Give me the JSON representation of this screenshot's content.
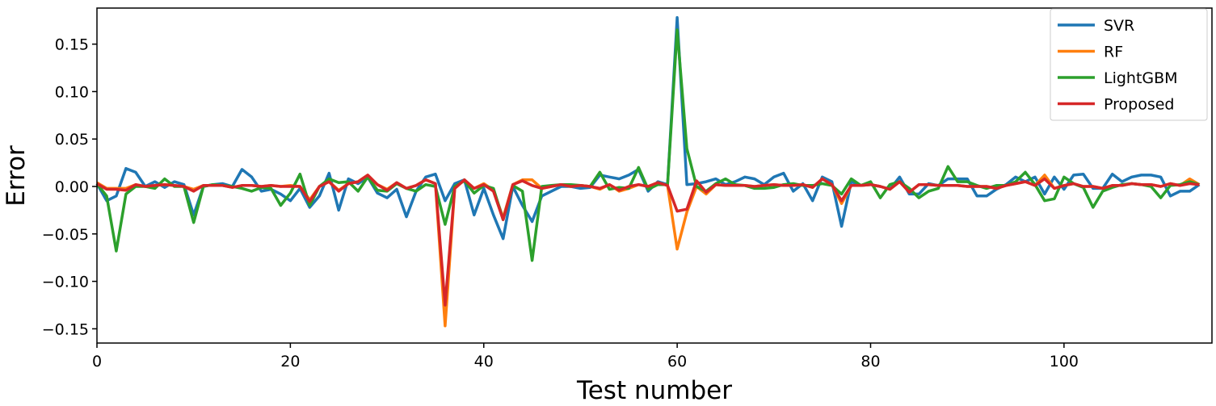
{
  "chart_data": {
    "type": "line",
    "title": "",
    "xlabel": "Test number",
    "ylabel": "Error",
    "xlim": [
      0,
      115.3
    ],
    "ylim": [
      -0.165,
      0.188
    ],
    "xticks": [
      0,
      20,
      40,
      60,
      80,
      100
    ],
    "yticks": [
      -0.15,
      -0.1,
      -0.05,
      0.0,
      0.05,
      0.1,
      0.15
    ],
    "ytick_labels": [
      "−0.15",
      "−0.10",
      "−0.05",
      "0.00",
      "0.05",
      "0.10",
      "0.15"
    ],
    "grid": false,
    "legend_position": "top-right",
    "x_start": 0,
    "series": [
      {
        "name": "SVR",
        "color": "#1f77b4",
        "values": [
          0.003,
          -0.015,
          -0.01,
          0.019,
          0.015,
          0,
          0.005,
          -0.001,
          0.005,
          0.002,
          -0.03,
          0,
          0.002,
          0.003,
          0,
          0.018,
          0.01,
          -0.005,
          -0.003,
          -0.008,
          -0.015,
          -0.002,
          -0.022,
          -0.01,
          0.014,
          -0.025,
          0.008,
          0.003,
          0.01,
          -0.007,
          -0.012,
          -0.003,
          -0.032,
          -0.005,
          0.01,
          0.013,
          -0.015,
          0.003,
          0.007,
          -0.03,
          -0.002,
          -0.03,
          -0.055,
          0,
          -0.02,
          -0.037,
          -0.01,
          -0.005,
          0,
          0,
          -0.002,
          -0.001,
          0.012,
          0.01,
          0.008,
          0.012,
          0.018,
          -0.005,
          0.005,
          0.002,
          0.178,
          0.002,
          0.003,
          0.005,
          0.008,
          0.002,
          0.005,
          0.01,
          0.008,
          0.002,
          0.01,
          0.014,
          -0.005,
          0.003,
          -0.015,
          0.01,
          0.005,
          -0.042,
          0.005,
          0.001,
          0.002,
          0,
          -0.003,
          0.01,
          -0.008,
          -0.008,
          0.003,
          0.001,
          0.008,
          0.008,
          0.008,
          -0.01,
          -0.01,
          -0.003,
          0.002,
          0.01,
          0.005,
          0.01,
          -0.008,
          0.01,
          -0.003,
          0.012,
          0.013,
          -0.002,
          -0.002,
          0.013,
          0.005,
          0.01,
          0.012,
          0.012,
          0.01,
          -0.01,
          -0.005,
          -0.005,
          0.002
        ]
      },
      {
        "name": "RF",
        "color": "#ff7f0e",
        "values": [
          0.004,
          -0.002,
          -0.002,
          -0.002,
          0.002,
          0,
          0.001,
          0.002,
          0.001,
          0,
          -0.003,
          0.001,
          0.001,
          0.001,
          -0.001,
          0.001,
          0.001,
          0,
          0.001,
          0,
          0.001,
          0,
          -0.014,
          0,
          0.005,
          -0.004,
          0.003,
          0.005,
          0.012,
          0.002,
          -0.003,
          0.004,
          -0.002,
          0.001,
          0.007,
          0.003,
          -0.147,
          -0.002,
          0.007,
          -0.002,
          0.003,
          -0.004,
          -0.033,
          0.002,
          0.007,
          0.007,
          -0.002,
          0,
          0.002,
          0,
          0.001,
          0,
          -0.003,
          0.002,
          -0.005,
          -0.002,
          0.002,
          0,
          0.004,
          0.001,
          -0.066,
          -0.027,
          0,
          -0.008,
          0.002,
          0.001,
          0.001,
          0.001,
          0,
          0.001,
          0.002,
          0.001,
          0.001,
          0.002,
          -0.001,
          0.008,
          0.002,
          -0.018,
          0.001,
          0.001,
          0.002,
          0,
          -0.003,
          0.005,
          -0.006,
          0.002,
          0.002,
          0.001,
          0.001,
          0.001,
          0,
          0,
          0,
          -0.002,
          0.001,
          0.003,
          0.005,
          0.001,
          0.012,
          -0.002,
          0.001,
          0.003,
          0,
          0,
          -0.002,
          0.001,
          0.001,
          0.003,
          0.002,
          0.002,
          0,
          0.003,
          0.001,
          0.008,
          0.002
        ]
      },
      {
        "name": "LightGBM",
        "color": "#2ca02c",
        "values": [
          0.003,
          -0.01,
          -0.068,
          -0.008,
          0,
          0,
          -0.002,
          0.008,
          0,
          0,
          -0.038,
          0,
          0.002,
          0.001,
          0,
          -0.002,
          -0.005,
          -0.001,
          -0.002,
          -0.02,
          -0.007,
          0.013,
          -0.02,
          0,
          0.008,
          0.004,
          0.005,
          -0.005,
          0.01,
          -0.004,
          -0.005,
          0.003,
          -0.002,
          -0.005,
          0.002,
          0,
          -0.04,
          0,
          0.006,
          -0.007,
          0.001,
          -0.002,
          -0.035,
          0.001,
          -0.005,
          -0.078,
          0,
          0.001,
          0.002,
          0.002,
          0.001,
          0,
          0.015,
          -0.003,
          -0.001,
          -0.002,
          0.02,
          -0.003,
          0.002,
          0.002,
          0.165,
          0.04,
          0,
          -0.005,
          0.003,
          0.008,
          0.002,
          0.001,
          -0.002,
          -0.002,
          -0.001,
          0.002,
          0.003,
          0.001,
          0.001,
          0.003,
          0.001,
          -0.008,
          0.008,
          0.001,
          0.005,
          -0.012,
          0.002,
          0.005,
          -0.002,
          -0.012,
          -0.005,
          -0.002,
          0.021,
          0.005,
          0.005,
          0.001,
          -0.002,
          0.001,
          0.001,
          0.005,
          0.015,
          0.002,
          -0.015,
          -0.013,
          0.01,
          0.003,
          -0.001,
          -0.022,
          -0.005,
          -0.001,
          0.002,
          0.003,
          0.002,
          0,
          -0.012,
          0.001,
          0.002,
          0.005,
          0.002
        ]
      },
      {
        "name": "Proposed",
        "color": "#d62728",
        "values": [
          0.003,
          -0.003,
          -0.003,
          -0.004,
          0.002,
          0,
          0.001,
          0.002,
          0.001,
          0,
          -0.005,
          0.001,
          0.001,
          0.001,
          -0.001,
          0.001,
          0.001,
          0,
          0.001,
          0,
          0,
          0,
          -0.016,
          0,
          0.005,
          -0.005,
          0.003,
          0.005,
          0.012,
          0.002,
          -0.004,
          0.004,
          -0.002,
          0.001,
          0.007,
          0.003,
          -0.125,
          -0.002,
          0.007,
          -0.002,
          0.002,
          -0.005,
          -0.035,
          0.002,
          0.006,
          0.001,
          -0.002,
          0,
          0.002,
          0,
          0.001,
          0,
          -0.002,
          0.002,
          -0.004,
          0,
          0.002,
          0,
          0.004,
          0.001,
          -0.026,
          -0.024,
          0.006,
          -0.006,
          0.002,
          0.001,
          0.001,
          0.001,
          0,
          0.001,
          0.002,
          0.001,
          0.001,
          0.002,
          -0.001,
          0.008,
          0.002,
          -0.015,
          0.001,
          0.001,
          0.002,
          0,
          -0.003,
          0.005,
          -0.006,
          0.002,
          0.002,
          0.001,
          0.001,
          0.001,
          0,
          0,
          0,
          -0.002,
          0.001,
          0.003,
          0.005,
          0.001,
          0.008,
          -0.002,
          0.001,
          0.003,
          0,
          0,
          -0.002,
          0.001,
          0.001,
          0.003,
          0.002,
          0.002,
          0,
          0.003,
          0.001,
          0.003,
          0.002
        ]
      }
    ]
  }
}
